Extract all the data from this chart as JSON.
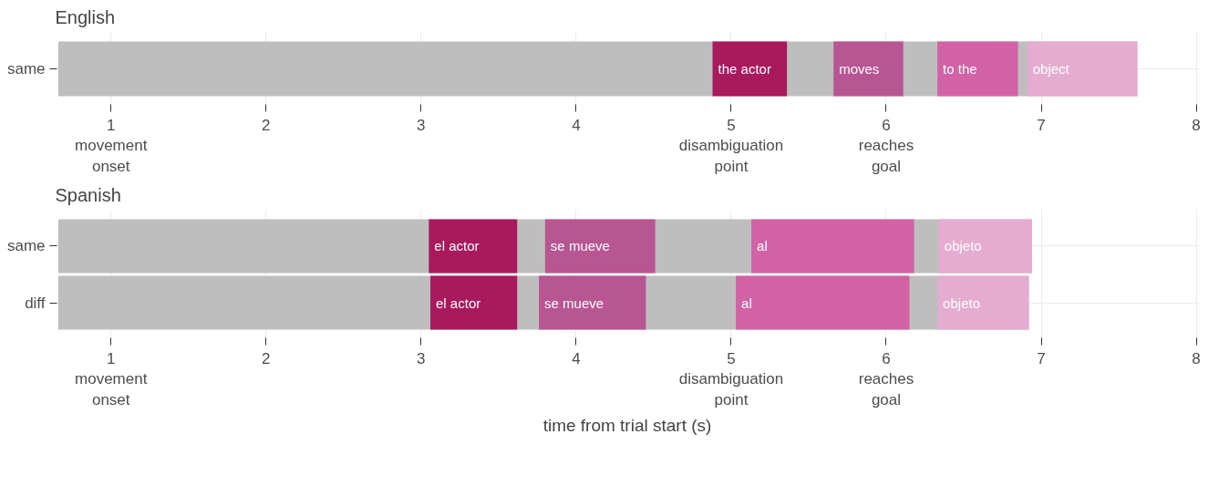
{
  "chart_data": [
    {
      "type": "bar",
      "orientation": "horizontal",
      "title": "English",
      "categories": [
        "same"
      ],
      "xlim": [
        0.64,
        8.02
      ],
      "xticks": [
        {
          "value": 1,
          "label": "1\nmovement\nonset"
        },
        2,
        3,
        4,
        {
          "value": 5,
          "label": "5\ndisambiguation\npoint"
        },
        {
          "value": 6,
          "label": "6\nreaches\ngoal"
        },
        7,
        8
      ],
      "grid": true,
      "series": [
        {
          "color": "#bebebe",
          "base": [
            0.66
          ],
          "values": [
            6.96
          ]
        },
        {
          "name": "the actor",
          "color": "#a8195e",
          "base": [
            4.88
          ],
          "values": [
            0.48
          ]
        },
        {
          "name": "moves",
          "color": "#b85593",
          "base": [
            5.66
          ],
          "values": [
            0.45
          ]
        },
        {
          "name": "to the",
          "color": "#d262a5",
          "base": [
            6.33
          ],
          "values": [
            0.52
          ]
        },
        {
          "name": "object",
          "color": "#e5acd0",
          "base": [
            6.91
          ],
          "values": [
            0.71
          ]
        }
      ]
    },
    {
      "type": "bar",
      "orientation": "horizontal",
      "title": "Spanish",
      "xlabel": "time from trial start (s)",
      "categories": [
        "same",
        "diff"
      ],
      "xlim": [
        0.64,
        8.02
      ],
      "xticks": [
        {
          "value": 1,
          "label": "1\nmovement\nonset"
        },
        2,
        3,
        4,
        {
          "value": 5,
          "label": "5\ndisambiguation\npoint"
        },
        {
          "value": 6,
          "label": "6\nreaches\ngoal"
        },
        7,
        8
      ],
      "grid": true,
      "series": [
        {
          "color": "#bebebe",
          "base": [
            0.66,
            0.66
          ],
          "values": [
            6.28,
            6.26
          ]
        },
        {
          "name": "el actor",
          "color": "#a8195e",
          "base": [
            3.05,
            3.06
          ],
          "values": [
            0.57,
            0.56
          ]
        },
        {
          "name": "se mueve",
          "color": "#b85593",
          "base": [
            3.8,
            3.76
          ],
          "values": [
            0.71,
            0.69
          ]
        },
        {
          "name": "al",
          "color": "#d262a5",
          "base": [
            5.13,
            5.03
          ],
          "values": [
            1.05,
            1.12
          ]
        },
        {
          "name": "objeto",
          "color": "#e5acd0",
          "base": [
            6.34,
            6.33
          ],
          "values": [
            0.6,
            0.59
          ]
        }
      ]
    }
  ]
}
